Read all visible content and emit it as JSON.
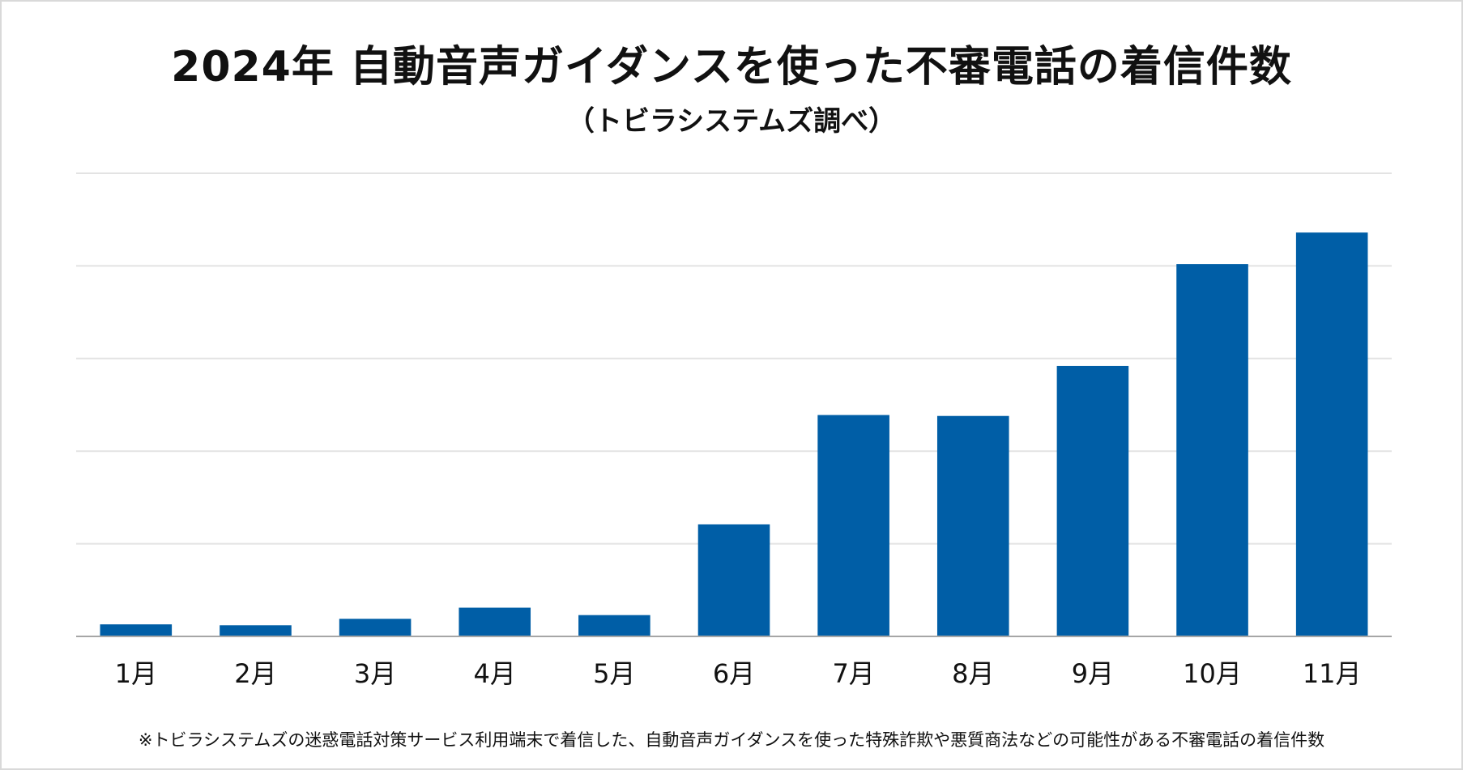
{
  "chart_data": {
    "type": "bar",
    "title": "2024年 自動音声ガイダンスを使った不審電話の着信件数",
    "subtitle": "（トビラシステムズ調べ）",
    "categories": [
      "1月",
      "2月",
      "3月",
      "4月",
      "5月",
      "6月",
      "7月",
      "8月",
      "9月",
      "10月",
      "11月"
    ],
    "values": [
      0.13,
      0.12,
      0.19,
      0.31,
      0.23,
      1.21,
      2.39,
      2.38,
      2.92,
      4.02,
      4.36
    ],
    "ylim": [
      0,
      5
    ],
    "grid": true,
    "bar_color": "#005ea6",
    "grid_color": "#e3e3e3",
    "axis_color": "#a6a6a6",
    "footnote": "※トビラシステムズの迷惑電話対策サービス利用端末で着信した、自動音声ガイダンスを使った特殊詐欺や悪質商法などの可能性がある不審電話の着信件数"
  }
}
